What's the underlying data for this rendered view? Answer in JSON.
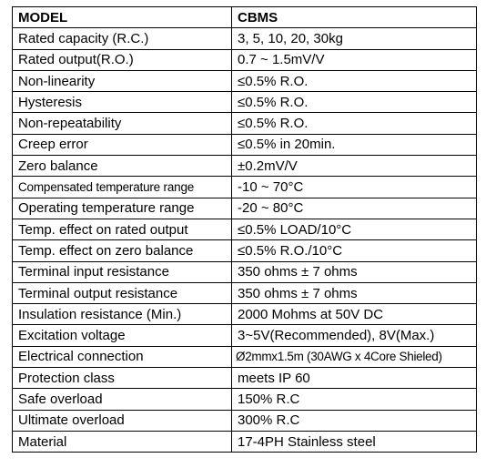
{
  "table": {
    "header": {
      "parameter": "MODEL",
      "value": "CBMS"
    },
    "rows": [
      {
        "parameter": "Rated capacity (R.C.)",
        "value": "3, 5, 10, 20, 30kg"
      },
      {
        "parameter": "Rated output(R.O.)",
        "value": "0.7 ~ 1.5mV/V"
      },
      {
        "parameter": "Non-linearity",
        "value": "≤0.5% R.O."
      },
      {
        "parameter": "Hysteresis",
        "value": "≤0.5% R.O."
      },
      {
        "parameter": "Non-repeatability",
        "value": "≤0.5% R.O."
      },
      {
        "parameter": "Creep error",
        "value": "≤0.5% in 20min."
      },
      {
        "parameter": "Zero balance",
        "value": "±0.2mV/V"
      },
      {
        "parameter": "Compensated temperature range",
        "value": "-10 ~ 70°C"
      },
      {
        "parameter": "Operating temperature range",
        "value": "-20 ~ 80°C"
      },
      {
        "parameter": "Temp. effect on rated output",
        "value": "≤0.5% LOAD/10°C"
      },
      {
        "parameter": "Temp. effect on zero balance",
        "value": "≤0.5% R.O./10°C"
      },
      {
        "parameter": "Terminal input resistance",
        "value": "350 ohms ± 7 ohms"
      },
      {
        "parameter": "Terminal output resistance",
        "value": "350 ohms ± 7 ohms"
      },
      {
        "parameter": "Insulation resistance (Min.)",
        "value": "2000 Mohms at 50V DC"
      },
      {
        "parameter": "Excitation voltage",
        "value": "3~5V(Recommended), 8V(Max.)"
      },
      {
        "parameter": "Electrical connection",
        "value": "Ø2mmx1.5m (30AWG x 4Core Shieled)"
      },
      {
        "parameter": "Protection class",
        "value": "meets IP 60"
      },
      {
        "parameter": "Safe overload",
        "value": "150% R.C"
      },
      {
        "parameter": "Ultimate overload",
        "value": "300% R.C"
      },
      {
        "parameter": "Material",
        "value": "17-4PH Stainless steel"
      }
    ]
  }
}
